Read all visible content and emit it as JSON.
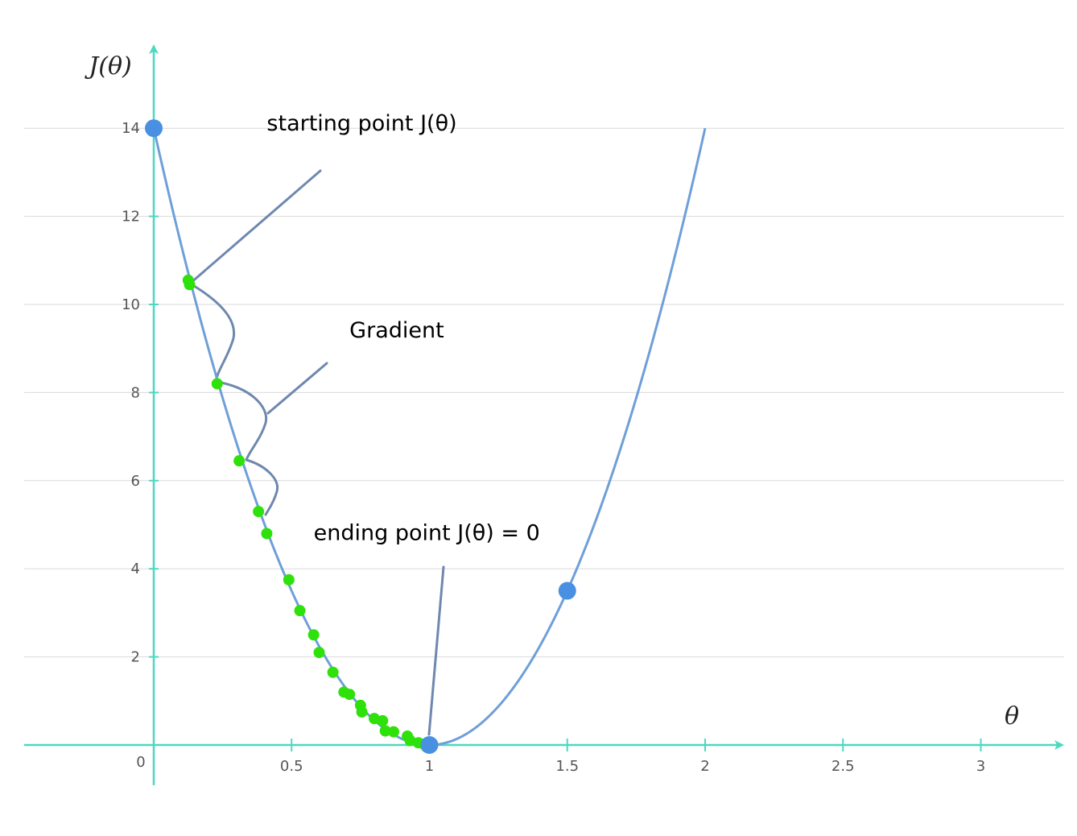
{
  "chart_data": {
    "type": "line",
    "xlabel": "θ",
    "ylabel": "J(θ)",
    "xlim": [
      -0.47,
      3.3
    ],
    "ylim": [
      -0.9,
      15.5
    ],
    "x_ticks": [
      0.5,
      1,
      1.5,
      2,
      2.5,
      3
    ],
    "x_tick_labels": [
      "0.5",
      "1",
      "1.5",
      "2",
      "2.5",
      "3"
    ],
    "y_ticks": [
      2,
      4,
      6,
      8,
      10,
      12,
      14
    ],
    "y_tick_labels": [
      "2",
      "4",
      "6",
      "8",
      "10",
      "12",
      "14"
    ],
    "origin_label": "0",
    "grid": "horizontal",
    "curve": {
      "formula": "14*(theta-1)^2",
      "x_range": [
        0,
        2
      ]
    },
    "highlight_points": [
      {
        "x": 0,
        "y": 14
      },
      {
        "x": 1,
        "y": 0
      },
      {
        "x": 1.5,
        "y": 3.5
      }
    ],
    "descent_points": [
      {
        "x": 0.125,
        "y": 10.55
      },
      {
        "x": 0.13,
        "y": 10.45
      },
      {
        "x": 0.23,
        "y": 8.2
      },
      {
        "x": 0.31,
        "y": 6.45
      },
      {
        "x": 0.38,
        "y": 5.3
      },
      {
        "x": 0.41,
        "y": 4.8
      },
      {
        "x": 0.49,
        "y": 3.75
      },
      {
        "x": 0.53,
        "y": 3.05
      },
      {
        "x": 0.58,
        "y": 2.5
      },
      {
        "x": 0.6,
        "y": 2.1
      },
      {
        "x": 0.65,
        "y": 1.65
      },
      {
        "x": 0.69,
        "y": 1.2
      },
      {
        "x": 0.71,
        "y": 1.15
      },
      {
        "x": 0.75,
        "y": 0.9
      },
      {
        "x": 0.755,
        "y": 0.75
      },
      {
        "x": 0.8,
        "y": 0.6
      },
      {
        "x": 0.83,
        "y": 0.55
      },
      {
        "x": 0.84,
        "y": 0.32
      },
      {
        "x": 0.87,
        "y": 0.3
      },
      {
        "x": 0.92,
        "y": 0.2
      },
      {
        "x": 0.93,
        "y": 0.1
      },
      {
        "x": 0.96,
        "y": 0.05
      },
      {
        "x": 0.98,
        "y": 0.02
      },
      {
        "x": 0.99,
        "y": -0.05
      }
    ],
    "annotations": [
      {
        "text": "starting point J(θ)",
        "x": 0.41,
        "y": 13.95
      },
      {
        "text": "Gradient",
        "x": 0.71,
        "y": 9.25
      },
      {
        "text": "ending point  J(θ) = 0",
        "x": 0.58,
        "y": 4.65
      }
    ],
    "colors": {
      "axis": "#4fd8c0",
      "curve": "#6f9fd8",
      "highlight": "#4a90e2",
      "descent": "#2ee10a",
      "annotation_line": "#6e88ae",
      "grid": "#d9d9d9"
    }
  }
}
